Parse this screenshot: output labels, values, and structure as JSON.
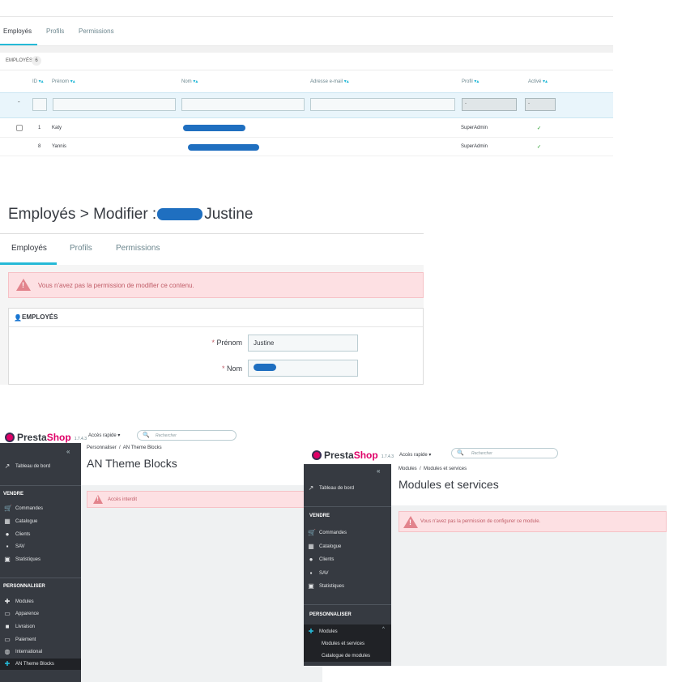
{
  "panel_a": {
    "tabs": [
      "Employés",
      "Profils",
      "Permissions"
    ],
    "header_title": "EMPLOYÉS",
    "header_count": "6",
    "columns": [
      "ID",
      "Prénom",
      "Nom",
      "Adresse e-mail",
      "Profil",
      "Activé"
    ],
    "sort_arrows": "▾▴",
    "filter_reset": "-",
    "filter_select_value": "-",
    "rows": [
      {
        "id": "1",
        "firstname": "Katy",
        "profile": "SuperAdmin",
        "active": "✓"
      },
      {
        "id": "8",
        "firstname": "Yannis",
        "profile": "SuperAdmin",
        "active": "✓"
      }
    ]
  },
  "panel_b": {
    "title_prefix": "Employés > Modifier :",
    "title_suffix": "Justine",
    "tabs": [
      "Employés",
      "Profils",
      "Permissions"
    ],
    "alert": "Vous n'avez pas la permission de modifier ce contenu.",
    "card_title": "EMPLOYÉS",
    "required_mark": "*",
    "fields": [
      {
        "label": "Prénom",
        "value": "Justine"
      },
      {
        "label": "Nom",
        "value": ""
      }
    ]
  },
  "panel_c": {
    "logo_presta": "Presta",
    "logo_shop": "Shop",
    "version": "1.7.4.3",
    "quick_access": "Accès rapide ▾",
    "search_placeholder": "Rechercher",
    "collapse": "«",
    "dashboard": "Tableau de bord",
    "section_sell": "VENDRE",
    "sell_items": [
      "Commandes",
      "Catalogue",
      "Clients",
      "SAV",
      "Statistiques"
    ],
    "section_customize": "PERSONNALISER",
    "customize_items": [
      "Modules",
      "Apparence",
      "Livraison",
      "Paiement",
      "International",
      "AN Theme Blocks"
    ],
    "breadcrumb": [
      "Personnaliser",
      "AN Theme Blocks"
    ],
    "breadcrumb_sep": "/",
    "page_title": "AN Theme Blocks",
    "alert": "Accès interdit"
  },
  "panel_d": {
    "logo_presta": "Presta",
    "logo_shop": "Shop",
    "version": "1.7.4.3",
    "quick_access": "Accès rapide ▾",
    "search_placeholder": "Rechercher",
    "collapse": "«",
    "dashboard": "Tableau de bord",
    "section_sell": "VENDRE",
    "sell_items": [
      "Commandes",
      "Catalogue",
      "Clients",
      "SAV",
      "Statistiques"
    ],
    "section_customize": "PERSONNALISER",
    "active_item": "Modules",
    "active_caret": "^",
    "sub_items": [
      "Modules et services",
      "Catalogue de modules"
    ],
    "breadcrumb": [
      "Modules",
      "Modules et services"
    ],
    "breadcrumb_sep": "/",
    "page_title": "Modules et services",
    "alert": "Vous n'avez pas la permission de configurer ce module."
  },
  "colors": {
    "accent": "#25b9d7",
    "sidebar": "#363a41",
    "alert_bg": "#fde0e3",
    "alert_text": "#c05c67",
    "brand": "#df0067"
  }
}
